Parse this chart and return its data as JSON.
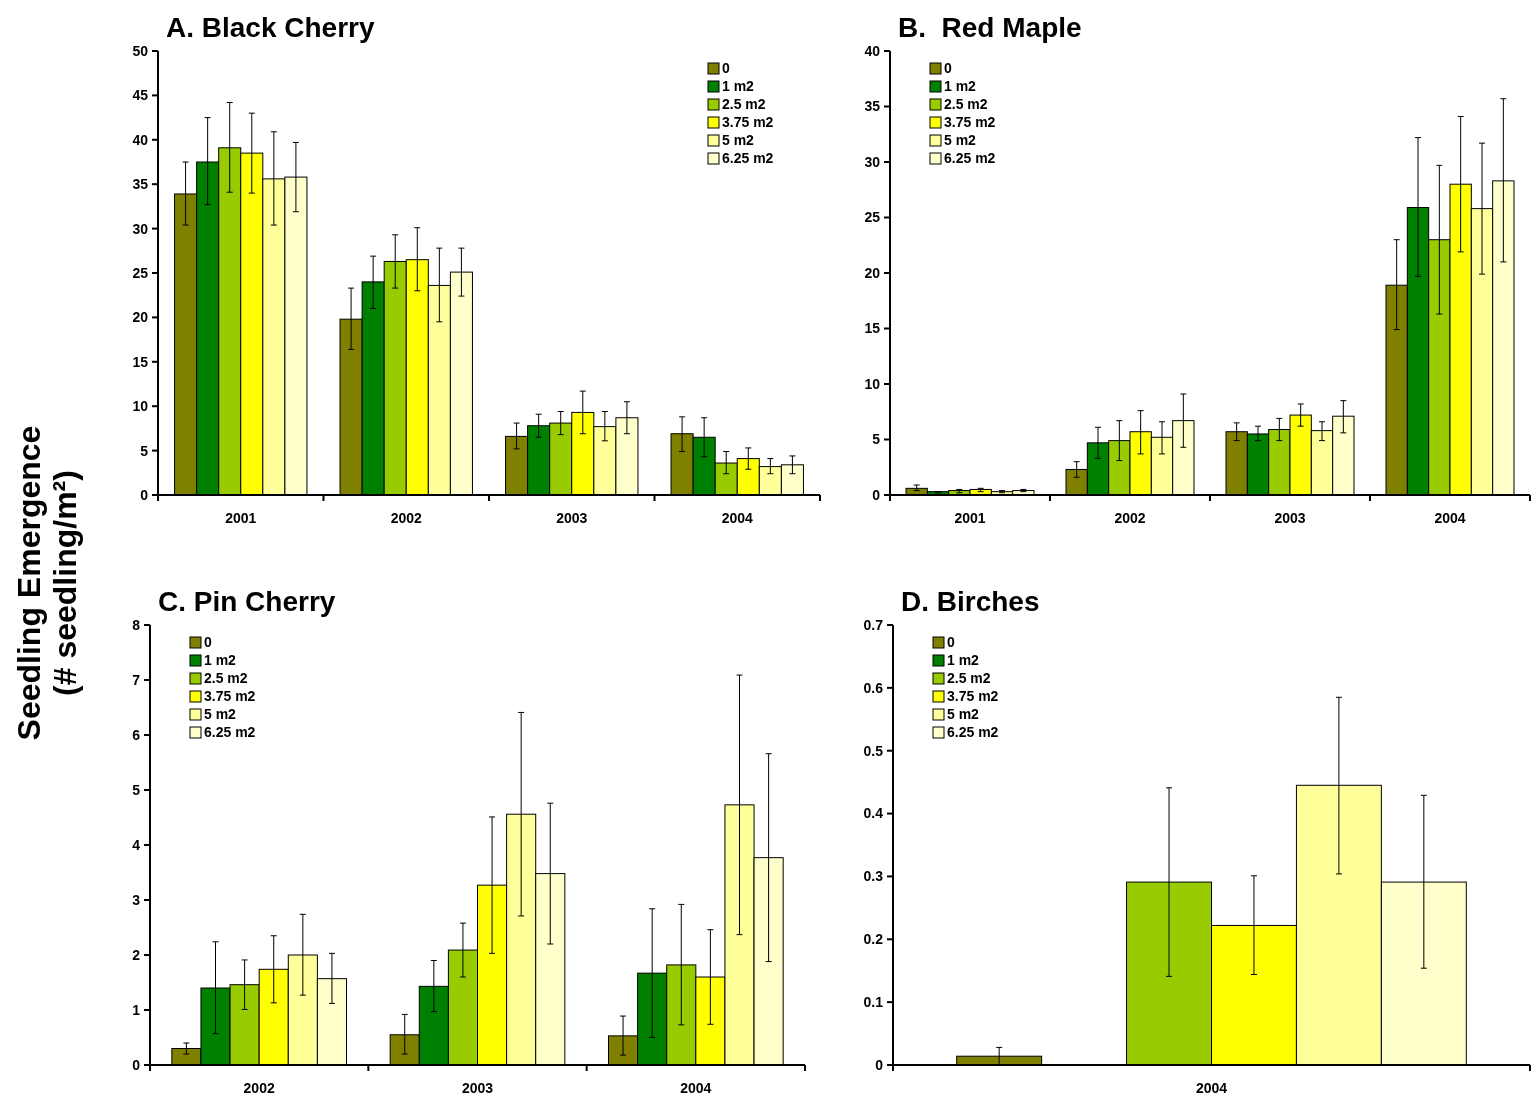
{
  "chart_data": [
    {
      "type": "bar",
      "title": "A. Black Cherry",
      "ylabel": "Seedling Emergence\n(# seedling/m²)",
      "categories": [
        "2001",
        "2002",
        "2003",
        "2004"
      ],
      "ylim": [
        0,
        50
      ],
      "yticks": [
        0,
        5,
        10,
        15,
        20,
        25,
        30,
        35,
        40,
        45,
        50
      ],
      "legend": "top right",
      "series": [
        {
          "name": "0",
          "color": "#808000",
          "values": [
            33.9,
            19.8,
            6.6,
            6.9
          ],
          "errors": [
            [
              30.4,
              37.5
            ],
            [
              16.4,
              23.3
            ],
            [
              5.2,
              8.1
            ],
            [
              4.9,
              8.8
            ]
          ]
        },
        {
          "name": "1 m2",
          "color": "#008000",
          "values": [
            37.5,
            24.0,
            7.8,
            6.5
          ],
          "errors": [
            [
              32.7,
              42.5
            ],
            [
              21.0,
              26.9
            ],
            [
              6.5,
              9.1
            ],
            [
              4.3,
              8.7
            ]
          ]
        },
        {
          "name": "2.5 m2",
          "color": "#99cc00",
          "values": [
            39.1,
            26.3,
            8.1,
            3.6
          ],
          "errors": [
            [
              34.1,
              44.2
            ],
            [
              23.3,
              29.3
            ],
            [
              6.8,
              9.4
            ],
            [
              2.4,
              4.9
            ]
          ]
        },
        {
          "name": "3.75 m2",
          "color": "#ffff00",
          "values": [
            38.5,
            26.5,
            9.3,
            4.1
          ],
          "errors": [
            [
              34.0,
              43.0
            ],
            [
              23.0,
              30.1
            ],
            [
              6.9,
              11.7
            ],
            [
              2.9,
              5.3
            ]
          ]
        },
        {
          "name": "5 m2",
          "color": "#ffff99",
          "values": [
            35.6,
            23.6,
            7.7,
            3.2
          ],
          "errors": [
            [
              30.4,
              40.9
            ],
            [
              19.5,
              27.8
            ],
            [
              6.1,
              9.4
            ],
            [
              2.4,
              4.1
            ]
          ]
        },
        {
          "name": "6.25 m2",
          "color": "#ffffcc",
          "values": [
            35.8,
            25.1,
            8.7,
            3.4
          ],
          "errors": [
            [
              31.9,
              39.7
            ],
            [
              22.4,
              27.8
            ],
            [
              6.9,
              10.5
            ],
            [
              2.4,
              4.4
            ]
          ]
        }
      ]
    },
    {
      "type": "bar",
      "title": "B.  Red Maple",
      "categories": [
        "2001",
        "2002",
        "2003",
        "2004"
      ],
      "ylim": [
        0,
        40
      ],
      "yticks": [
        0,
        5,
        10,
        15,
        20,
        25,
        30,
        35,
        40
      ],
      "legend": "top left",
      "series": [
        {
          "name": "0",
          "color": "#808000",
          "values": [
            0.6,
            2.3,
            5.7,
            18.9
          ],
          "errors": [
            [
              0.4,
              0.9
            ],
            [
              1.6,
              3.0
            ],
            [
              4.9,
              6.5
            ],
            [
              14.9,
              23.0
            ]
          ]
        },
        {
          "name": "1 m2",
          "color": "#008000",
          "values": [
            0.3,
            4.7,
            5.5,
            25.9
          ],
          "errors": [
            [
              0.2,
              0.3
            ],
            [
              3.3,
              6.1
            ],
            [
              4.9,
              6.2
            ],
            [
              19.7,
              32.2
            ]
          ]
        },
        {
          "name": "2.5 m2",
          "color": "#99cc00",
          "values": [
            0.4,
            4.9,
            5.9,
            23.0
          ],
          "errors": [
            [
              0.2,
              0.5
            ],
            [
              3.1,
              6.7
            ],
            [
              4.9,
              6.9
            ],
            [
              16.3,
              29.7
            ]
          ]
        },
        {
          "name": "3.75 m2",
          "color": "#ffff00",
          "values": [
            0.5,
            5.7,
            7.2,
            28.0
          ],
          "errors": [
            [
              0.3,
              0.6
            ],
            [
              3.7,
              7.6
            ],
            [
              6.2,
              8.2
            ],
            [
              21.9,
              34.1
            ]
          ]
        },
        {
          "name": "5 m2",
          "color": "#ffff99",
          "values": [
            0.3,
            5.2,
            5.8,
            25.8
          ],
          "errors": [
            [
              0.2,
              0.4
            ],
            [
              3.7,
              6.6
            ],
            [
              4.9,
              6.6
            ],
            [
              19.9,
              31.7
            ]
          ]
        },
        {
          "name": "6.25 m2",
          "color": "#ffffcc",
          "values": [
            0.4,
            6.7,
            7.1,
            28.3
          ],
          "errors": [
            [
              0.3,
              0.5
            ],
            [
              4.3,
              9.1
            ],
            [
              5.6,
              8.5
            ],
            [
              21.0,
              35.7
            ]
          ]
        }
      ]
    },
    {
      "type": "bar",
      "title": "C. Pin Cherry",
      "categories": [
        "2002",
        "2003",
        "2004"
      ],
      "ylim": [
        0,
        8
      ],
      "yticks": [
        0,
        1,
        2,
        3,
        4,
        5,
        6,
        7,
        8
      ],
      "legend": "top left",
      "series": [
        {
          "name": "0",
          "color": "#808000",
          "values": [
            0.3,
            0.55,
            0.53
          ],
          "errors": [
            [
              0.2,
              0.4
            ],
            [
              0.2,
              0.92
            ],
            [
              0.18,
              0.89
            ]
          ]
        },
        {
          "name": "1 m2",
          "color": "#008000",
          "values": [
            1.4,
            1.43,
            1.67
          ],
          "errors": [
            [
              0.57,
              2.24
            ],
            [
              0.97,
              1.9
            ],
            [
              0.5,
              2.84
            ]
          ]
        },
        {
          "name": "2.5 m2",
          "color": "#99cc00",
          "values": [
            1.46,
            2.09,
            1.82
          ],
          "errors": [
            [
              1.01,
              1.91
            ],
            [
              1.6,
              2.58
            ],
            [
              0.73,
              2.92
            ]
          ]
        },
        {
          "name": "3.75 m2",
          "color": "#ffff00",
          "values": [
            1.74,
            3.27,
            1.6
          ],
          "errors": [
            [
              1.13,
              2.35
            ],
            [
              2.03,
              4.51
            ],
            [
              0.74,
              2.46
            ]
          ]
        },
        {
          "name": "5 m2",
          "color": "#ffff99",
          "values": [
            2.0,
            4.56,
            4.73
          ],
          "errors": [
            [
              1.27,
              2.74
            ],
            [
              2.71,
              6.41
            ],
            [
              2.37,
              7.09
            ]
          ]
        },
        {
          "name": "6.25 m2",
          "color": "#ffffcc",
          "values": [
            1.57,
            3.48,
            3.77
          ],
          "errors": [
            [
              1.12,
              2.03
            ],
            [
              2.2,
              4.76
            ],
            [
              1.88,
              5.66
            ]
          ]
        }
      ]
    },
    {
      "type": "bar",
      "title": "D. Birches",
      "categories": [
        "2004"
      ],
      "ylim": [
        0,
        0.7
      ],
      "yticks": [
        0,
        0.1,
        0.2,
        0.3,
        0.4,
        0.5,
        0.6,
        0.7
      ],
      "legend": "top left",
      "series": [
        {
          "name": "0",
          "color": "#808000",
          "values": [
            0.014
          ],
          "errors": [
            [
              0,
              0.028
            ]
          ]
        },
        {
          "name": "1 m2",
          "color": "#008000",
          "values": [
            null
          ],
          "errors": [
            null
          ]
        },
        {
          "name": "2.5 m2",
          "color": "#99cc00",
          "values": [
            0.291
          ],
          "errors": [
            [
              0.141,
              0.441
            ]
          ]
        },
        {
          "name": "3.75 m2",
          "color": "#ffff00",
          "values": [
            0.222
          ],
          "errors": [
            [
              0.144,
              0.301
            ]
          ]
        },
        {
          "name": "5 m2",
          "color": "#ffff99",
          "values": [
            0.445
          ],
          "errors": [
            [
              0.304,
              0.585
            ]
          ]
        },
        {
          "name": "6.25 m2",
          "color": "#ffffcc",
          "values": [
            0.291
          ],
          "errors": [
            [
              0.154,
              0.429
            ]
          ]
        }
      ]
    }
  ]
}
